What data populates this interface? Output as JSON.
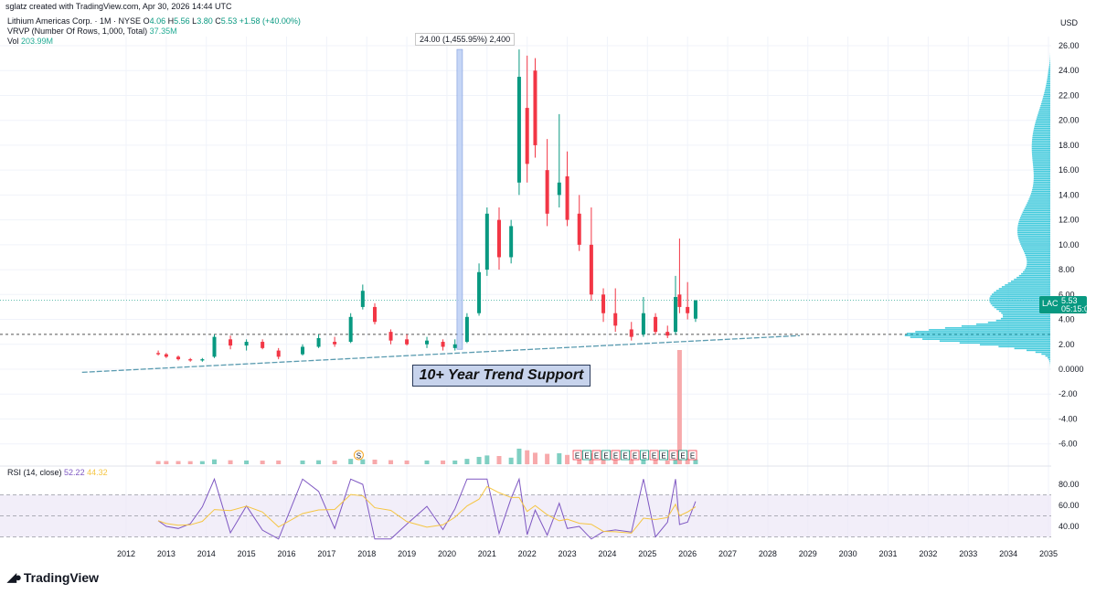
{
  "credit": "sglatz created with TradingView.com, Apr 30, 2026 14:44 UTC",
  "legend": {
    "symbol": "Lithium Americas Corp. · 1M · NYSE",
    "o_label": "O",
    "o": "4.06",
    "h_label": "H",
    "h": "5.56",
    "l_label": "L",
    "l": "3.80",
    "c_label": "C",
    "c": "5.53",
    "change": "+1.58 (+40.00%)",
    "vrvp_label": "VRVP (Number Of Rows, 1,000, Total)",
    "vrvp_value": "37.35M",
    "vol_label": "Vol",
    "vol_value": "203.99M"
  },
  "currency": "USD",
  "price_tag": {
    "symbol": "LAC",
    "price": "5.53",
    "countdown": "05:15:09"
  },
  "measure_label": "24.00 (1,455.95%) 2,400",
  "note": "10+ Year Trend Support",
  "rsi_legend": {
    "label": "RSI (14, close)",
    "rsi": "52.22",
    "ma": "44.32"
  },
  "brand": "TradingView",
  "colors": {
    "up": "#089981",
    "down": "#f23645",
    "vol_up": "#7fcfc2",
    "vol_down": "#f7a9ab",
    "rsi": "#7e57c2",
    "rsi_ma": "#f5c542",
    "vrvp": "#22c1d6",
    "trend": "#5a9bb0"
  },
  "events": [
    "S",
    "E",
    "E",
    "E",
    "E",
    "E",
    "E",
    "E",
    "E",
    "E",
    "E",
    "E",
    "E",
    "E"
  ],
  "chart_data": {
    "type": "candlestick",
    "x_axis": {
      "ticks": [
        "2012",
        "2013",
        "2014",
        "2015",
        "2016",
        "2017",
        "2018",
        "2019",
        "2020",
        "2021",
        "2022",
        "2023",
        "2024",
        "2025",
        "2026",
        "2027",
        "2028",
        "2029",
        "2030",
        "2031",
        "2032",
        "2033",
        "2034",
        "2035"
      ]
    },
    "y_axis": {
      "ticks": [
        "26.00",
        "24.00",
        "22.00",
        "20.00",
        "18.00",
        "16.00",
        "14.00",
        "12.00",
        "10.00",
        "8.00",
        "6.00",
        "4.00",
        "2.00",
        "0.0000",
        "-2.00",
        "-4.00",
        "-6.00"
      ],
      "range": [
        -7.5,
        27
      ]
    },
    "rsi_axis": {
      "ticks": [
        "80.00",
        "60.00",
        "40.00"
      ],
      "range": [
        25,
        90
      ],
      "bands": [
        30,
        50,
        70
      ]
    },
    "series": [
      {
        "t": 2012.8,
        "o": 1.3,
        "h": 1.5,
        "l": 1.1,
        "c": 1.2
      },
      {
        "t": 2013.0,
        "o": 1.2,
        "h": 1.3,
        "l": 0.9,
        "c": 1.0
      },
      {
        "t": 2013.3,
        "o": 1.0,
        "h": 1.1,
        "l": 0.7,
        "c": 0.8
      },
      {
        "t": 2013.6,
        "o": 0.8,
        "h": 0.9,
        "l": 0.6,
        "c": 0.7
      },
      {
        "t": 2013.9,
        "o": 0.7,
        "h": 0.9,
        "l": 0.6,
        "c": 0.8
      },
      {
        "t": 2014.2,
        "o": 1.0,
        "h": 2.8,
        "l": 0.9,
        "c": 2.6
      },
      {
        "t": 2014.6,
        "o": 2.4,
        "h": 2.7,
        "l": 1.6,
        "c": 1.9
      },
      {
        "t": 2015.0,
        "o": 1.9,
        "h": 2.4,
        "l": 1.5,
        "c": 2.2
      },
      {
        "t": 2015.4,
        "o": 2.2,
        "h": 2.4,
        "l": 1.6,
        "c": 1.7
      },
      {
        "t": 2015.8,
        "o": 1.5,
        "h": 1.7,
        "l": 0.8,
        "c": 1.0
      },
      {
        "t": 2016.4,
        "o": 1.2,
        "h": 2.0,
        "l": 1.1,
        "c": 1.8
      },
      {
        "t": 2016.8,
        "o": 1.8,
        "h": 2.8,
        "l": 1.7,
        "c": 2.5
      },
      {
        "t": 2017.2,
        "o": 2.2,
        "h": 2.6,
        "l": 1.8,
        "c": 2.0
      },
      {
        "t": 2017.6,
        "o": 2.2,
        "h": 4.5,
        "l": 2.1,
        "c": 4.2
      },
      {
        "t": 2017.9,
        "o": 5.0,
        "h": 6.8,
        "l": 4.8,
        "c": 6.3
      },
      {
        "t": 2018.2,
        "o": 5.0,
        "h": 5.3,
        "l": 3.6,
        "c": 3.8
      },
      {
        "t": 2018.6,
        "o": 3.0,
        "h": 3.2,
        "l": 2.0,
        "c": 2.3
      },
      {
        "t": 2019.0,
        "o": 2.4,
        "h": 2.8,
        "l": 1.9,
        "c": 2.0
      },
      {
        "t": 2019.5,
        "o": 2.0,
        "h": 2.6,
        "l": 1.7,
        "c": 2.3
      },
      {
        "t": 2019.9,
        "o": 2.2,
        "h": 2.4,
        "l": 1.5,
        "c": 1.8
      },
      {
        "t": 2020.2,
        "o": 1.7,
        "h": 2.4,
        "l": 1.5,
        "c": 2.0
      },
      {
        "t": 2020.5,
        "o": 2.2,
        "h": 4.5,
        "l": 2.1,
        "c": 4.2
      },
      {
        "t": 2020.8,
        "o": 4.5,
        "h": 8.5,
        "l": 4.3,
        "c": 7.8
      },
      {
        "t": 2021.0,
        "o": 8.0,
        "h": 13.0,
        "l": 7.5,
        "c": 12.5
      },
      {
        "t": 2021.3,
        "o": 12.0,
        "h": 13.0,
        "l": 8.0,
        "c": 9.0
      },
      {
        "t": 2021.6,
        "o": 9.0,
        "h": 12.0,
        "l": 8.5,
        "c": 11.5
      },
      {
        "t": 2021.8,
        "o": 15.0,
        "h": 25.7,
        "l": 14.0,
        "c": 23.5
      },
      {
        "t": 2022.0,
        "o": 21.0,
        "h": 25.2,
        "l": 15.0,
        "c": 16.5
      },
      {
        "t": 2022.2,
        "o": 24.0,
        "h": 25.0,
        "l": 17.0,
        "c": 18.0
      },
      {
        "t": 2022.5,
        "o": 16.0,
        "h": 18.5,
        "l": 11.5,
        "c": 12.5
      },
      {
        "t": 2022.8,
        "o": 14.0,
        "h": 20.5,
        "l": 13.0,
        "c": 15.0
      },
      {
        "t": 2023.0,
        "o": 15.5,
        "h": 17.5,
        "l": 11.5,
        "c": 12.0
      },
      {
        "t": 2023.3,
        "o": 12.5,
        "h": 14.0,
        "l": 9.5,
        "c": 10.0
      },
      {
        "t": 2023.6,
        "o": 10.0,
        "h": 13.0,
        "l": 5.5,
        "c": 6.0
      },
      {
        "t": 2023.9,
        "o": 6.0,
        "h": 6.5,
        "l": 3.8,
        "c": 4.5
      },
      {
        "t": 2024.2,
        "o": 4.5,
        "h": 6.5,
        "l": 3.0,
        "c": 3.5
      },
      {
        "t": 2024.6,
        "o": 3.2,
        "h": 3.8,
        "l": 2.3,
        "c": 2.6
      },
      {
        "t": 2024.9,
        "o": 2.8,
        "h": 5.8,
        "l": 2.6,
        "c": 4.5
      },
      {
        "t": 2025.2,
        "o": 4.2,
        "h": 4.5,
        "l": 2.8,
        "c": 3.0
      },
      {
        "t": 2025.5,
        "o": 3.0,
        "h": 3.5,
        "l": 2.5,
        "c": 2.7
      },
      {
        "t": 2025.7,
        "o": 3.0,
        "h": 7.5,
        "l": 2.8,
        "c": 5.8
      },
      {
        "t": 2025.8,
        "o": 6.0,
        "h": 10.5,
        "l": 4.5,
        "c": 5.0
      },
      {
        "t": 2026.0,
        "o": 5.0,
        "h": 7.0,
        "l": 4.0,
        "c": 4.5
      },
      {
        "t": 2026.2,
        "o": 4.06,
        "h": 5.56,
        "l": 3.8,
        "c": 5.53
      }
    ]
  }
}
